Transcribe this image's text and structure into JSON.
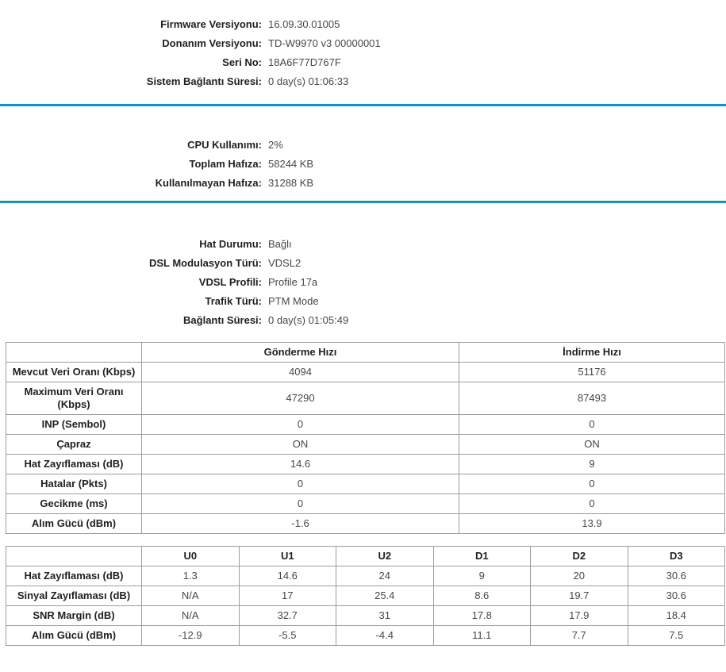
{
  "colors": {
    "divider": "#0e94c6",
    "table_border": "#9c9c9c",
    "label_text": "#1f1f1f",
    "value_text": "#474747"
  },
  "sections": [
    {
      "name": "device-info",
      "rows": [
        {
          "label": "Firmware Versiyonu:",
          "value": "16.09.30.01005"
        },
        {
          "label": "Donanım Versiyonu:",
          "value": "TD-W9970 v3 00000001"
        },
        {
          "label": "Seri No:",
          "value": "18A6F77D767F"
        },
        {
          "label": "Sistem Bağlantı Süresi:",
          "value": "0 day(s) 01:06:33"
        }
      ]
    },
    {
      "name": "system-resources",
      "rows": [
        {
          "label": "CPU Kullanımı:",
          "value": "2%"
        },
        {
          "label": "Toplam Hafıza:",
          "value": "58244 KB"
        },
        {
          "label": "Kullanılmayan Hafıza:",
          "value": "31288 KB"
        }
      ]
    },
    {
      "name": "dsl-line-status",
      "rows": [
        {
          "label": "Hat Durumu:",
          "value": "Bağlı"
        },
        {
          "label": "DSL Modulasyon Türü:",
          "value": "VDSL2"
        },
        {
          "label": "VDSL Profili:",
          "value": "Profile 17a"
        },
        {
          "label": "Trafik Türü:",
          "value": "PTM Mode"
        },
        {
          "label": "Bağlantı Süresi:",
          "value": "0 day(s) 01:05:49"
        }
      ]
    }
  ],
  "tables": [
    {
      "name": "rate-table",
      "columns": [
        "",
        "Gönderme Hızı",
        "İndirme Hızı"
      ],
      "rows": [
        {
          "label": "Mevcut Veri Oranı (Kbps)",
          "values": [
            "4094",
            "51176"
          ]
        },
        {
          "label": "Maximum Veri Oranı (Kbps)",
          "values": [
            "47290",
            "87493"
          ]
        },
        {
          "label": "INP (Sembol)",
          "values": [
            "0",
            "0"
          ]
        },
        {
          "label": "Çapraz",
          "values": [
            "ON",
            "ON"
          ]
        },
        {
          "label": "Hat Zayıflaması (dB)",
          "values": [
            "14.6",
            "9"
          ]
        },
        {
          "label": "Hatalar (Pkts)",
          "values": [
            "0",
            "0"
          ]
        },
        {
          "label": "Gecikme (ms)",
          "values": [
            "0",
            "0"
          ]
        },
        {
          "label": "Alım Gücü (dBm)",
          "values": [
            "-1.6",
            "13.9"
          ]
        }
      ]
    },
    {
      "name": "band-table",
      "columns": [
        "",
        "U0",
        "U1",
        "U2",
        "D1",
        "D2",
        "D3"
      ],
      "rows": [
        {
          "label": "Hat Zayıflaması (dB)",
          "values": [
            "1.3",
            "14.6",
            "24",
            "9",
            "20",
            "30.6"
          ]
        },
        {
          "label": "Sinyal Zayıflaması (dB)",
          "values": [
            "N/A",
            "17",
            "25.4",
            "8.6",
            "19.7",
            "30.6"
          ]
        },
        {
          "label": "SNR Margin (dB)",
          "values": [
            "N/A",
            "32.7",
            "31",
            "17.8",
            "17.9",
            "18.4"
          ]
        },
        {
          "label": "Alım Gücü (dBm)",
          "values": [
            "-12.9",
            "-5.5",
            "-4.4",
            "11.1",
            "7.7",
            "7.5"
          ]
        }
      ]
    }
  ]
}
